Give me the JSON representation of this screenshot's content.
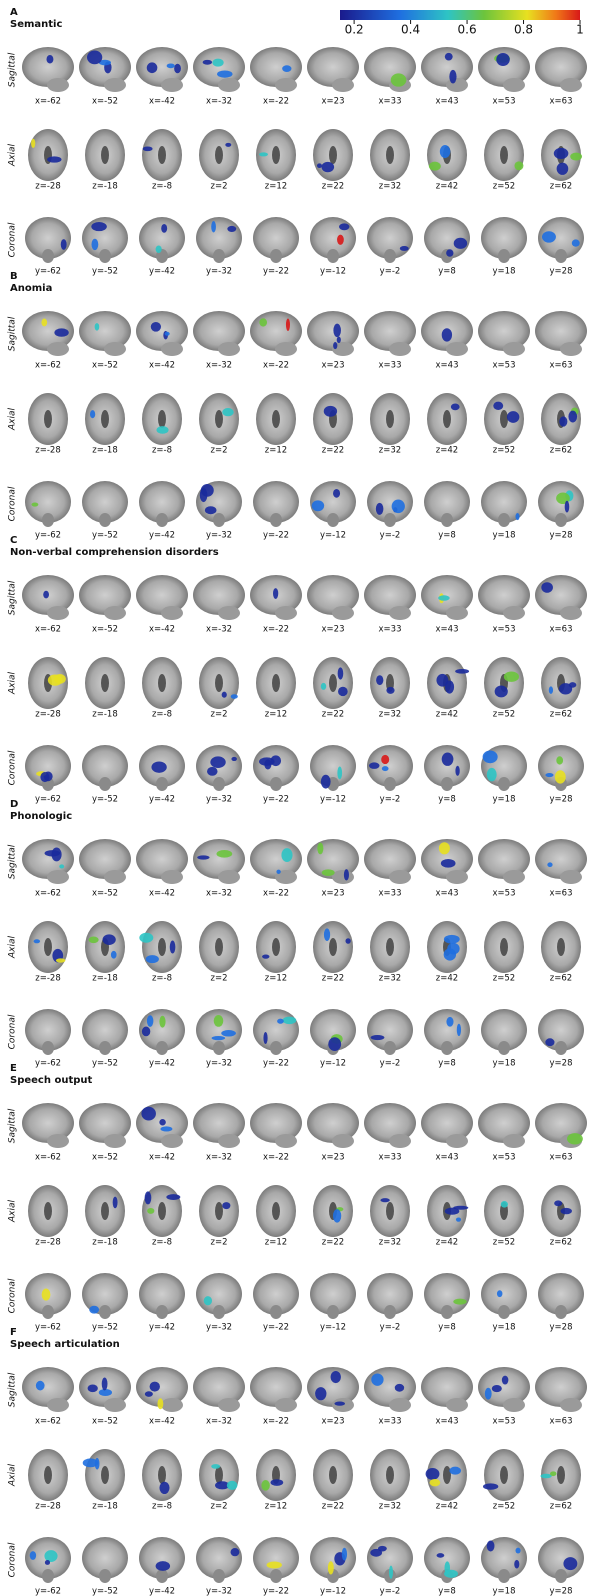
{
  "colorbar": {
    "lim": [
      0.15,
      1
    ],
    "ticks": [
      0.2,
      0.4,
      0.6,
      0.8,
      1
    ]
  },
  "panels": [
    {
      "letter": "A",
      "title": "Semantic",
      "rows": [
        {
          "view": "Sagittal",
          "labels": [
            "x=-62",
            "x=-52",
            "x=-42",
            "x=-32",
            "x=-22",
            "x=23",
            "x=33",
            "x=43",
            "x=53",
            "x=63"
          ]
        },
        {
          "view": "Axial",
          "labels": [
            "z=-28",
            "z=-18",
            "z=-8",
            "z=2",
            "z=12",
            "z=22",
            "z=32",
            "z=42",
            "z=52",
            "z=62"
          ]
        },
        {
          "view": "Coronal",
          "labels": [
            "y=-62",
            "y=-52",
            "y=-42",
            "y=-32",
            "y=-22",
            "y=-12",
            "y=-2",
            "y=8",
            "y=18",
            "y=28"
          ]
        }
      ]
    },
    {
      "letter": "B",
      "title": "Anomia",
      "rows": [
        {
          "view": "Sagittal",
          "labels": [
            "x=-62",
            "x=-52",
            "x=-42",
            "x=-32",
            "x=-22",
            "x=23",
            "x=33",
            "x=43",
            "x=53",
            "x=63"
          ]
        },
        {
          "view": "Axial",
          "labels": [
            "z=-28",
            "z=-18",
            "z=-8",
            "z=2",
            "z=12",
            "z=22",
            "z=32",
            "z=42",
            "z=52",
            "z=62"
          ]
        },
        {
          "view": "Coronal",
          "labels": [
            "y=-62",
            "y=-52",
            "y=-42",
            "y=-32",
            "y=-22",
            "y=-12",
            "y=-2",
            "y=8",
            "y=18",
            "y=28"
          ]
        }
      ]
    },
    {
      "letter": "C",
      "title": "Non-verbal comprehension disorders",
      "rows": [
        {
          "view": "Sagittal",
          "labels": [
            "x=-62",
            "x=-52",
            "x=-42",
            "x=-32",
            "x=-22",
            "x=23",
            "x=33",
            "x=43",
            "x=53",
            "x=63"
          ]
        },
        {
          "view": "Axial",
          "labels": [
            "z=-28",
            "z=-18",
            "z=-8",
            "z=2",
            "z=12",
            "z=22",
            "z=32",
            "z=42",
            "z=52",
            "z=62"
          ]
        },
        {
          "view": "Coronal",
          "labels": [
            "y=-62",
            "y=-52",
            "y=-42",
            "y=-32",
            "y=-22",
            "y=-12",
            "y=-2",
            "y=8",
            "y=18",
            "y=28"
          ]
        }
      ]
    },
    {
      "letter": "D",
      "title": "Phonologic",
      "rows": [
        {
          "view": "Sagittal",
          "labels": [
            "x=-62",
            "x=-52",
            "x=-42",
            "x=-32",
            "x=-22",
            "x=23",
            "x=33",
            "x=43",
            "x=53",
            "x=63"
          ]
        },
        {
          "view": "Axial",
          "labels": [
            "z=-28",
            "z=-18",
            "z=-8",
            "z=2",
            "z=12",
            "z=22",
            "z=32",
            "z=42",
            "z=52",
            "z=62"
          ]
        },
        {
          "view": "Coronal",
          "labels": [
            "y=-62",
            "y=-52",
            "y=-42",
            "y=-32",
            "y=-22",
            "y=-12",
            "y=-2",
            "y=8",
            "y=18",
            "y=28"
          ]
        }
      ]
    },
    {
      "letter": "E",
      "title": "Speech output",
      "rows": [
        {
          "view": "Sagittal",
          "labels": [
            "x=-62",
            "x=-52",
            "x=-42",
            "x=-32",
            "x=-22",
            "x=23",
            "x=33",
            "x=43",
            "x=53",
            "x=63"
          ]
        },
        {
          "view": "Axial",
          "labels": [
            "z=-28",
            "z=-18",
            "z=-8",
            "z=2",
            "z=12",
            "z=22",
            "z=32",
            "z=42",
            "z=52",
            "z=62"
          ]
        },
        {
          "view": "Coronal",
          "labels": [
            "y=-62",
            "y=-52",
            "y=-42",
            "y=-32",
            "y=-22",
            "y=-12",
            "y=-2",
            "y=8",
            "y=18",
            "y=28"
          ]
        }
      ]
    },
    {
      "letter": "F",
      "title": "Speech articulation",
      "rows": [
        {
          "view": "Sagittal",
          "labels": [
            "x=-62",
            "x=-52",
            "x=-42",
            "x=-32",
            "x=-22",
            "x=23",
            "x=33",
            "x=43",
            "x=53",
            "x=63"
          ]
        },
        {
          "view": "Axial",
          "labels": [
            "z=-28",
            "z=-18",
            "z=-8",
            "z=2",
            "z=12",
            "z=22",
            "z=32",
            "z=42",
            "z=52",
            "z=62"
          ]
        },
        {
          "view": "Coronal",
          "labels": [
            "y=-62",
            "y=-52",
            "y=-42",
            "y=-32",
            "y=-22",
            "y=-12",
            "y=-2",
            "y=8",
            "y=18",
            "y=28"
          ]
        }
      ]
    }
  ]
}
